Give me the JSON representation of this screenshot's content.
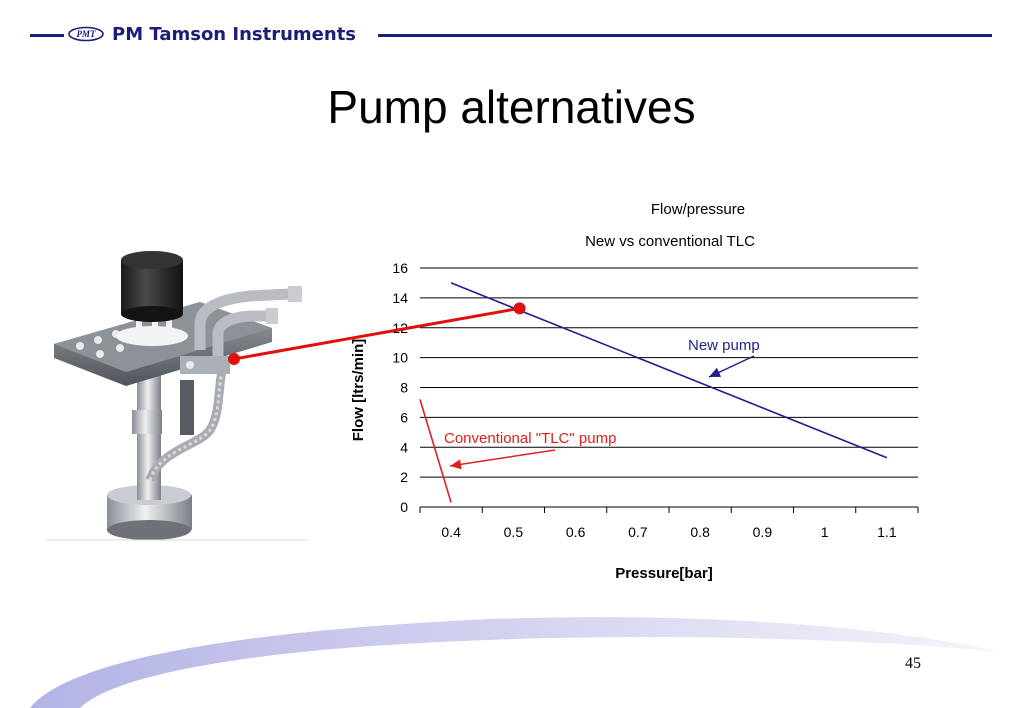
{
  "header": {
    "logo_text": "PMT",
    "company_name": "PM Tamson Instruments",
    "brand_color": "#1c1c7a"
  },
  "slide": {
    "title": "Pump alternatives",
    "page_number": "45"
  },
  "chart_data": {
    "type": "line",
    "title": "Flow/pressure",
    "subtitle": "New vs conventional TLC",
    "xlabel": "Pressure[bar]",
    "ylabel": "Flow  [ltrs/min]",
    "x_ticks": [
      "0.4",
      "0.5",
      "0.6",
      "0.7",
      "0.8",
      "0.9",
      "1",
      "1.1"
    ],
    "y_ticks": [
      0,
      2,
      4,
      6,
      8,
      10,
      12,
      14,
      16
    ],
    "ylim": [
      0,
      16
    ],
    "grid": "horizontal",
    "legend": "none",
    "series": [
      {
        "name": "New pump",
        "color": "#1f1f8c",
        "points": [
          [
            0.4,
            15
          ],
          [
            1.1,
            3.3
          ]
        ]
      },
      {
        "name": "Conventional \"TLC\" pump",
        "color": "#e02020",
        "points": [
          [
            0.35,
            7.2
          ],
          [
            0.4,
            0.3
          ]
        ]
      }
    ],
    "annotations": [
      {
        "text": "New pump",
        "color": "#1f1f8c"
      },
      {
        "text": "Conventional \"TLC\" pump",
        "color": "#e02020"
      }
    ],
    "callout": {
      "color": "#e01010",
      "target": [
        0.51,
        13.3
      ]
    }
  }
}
